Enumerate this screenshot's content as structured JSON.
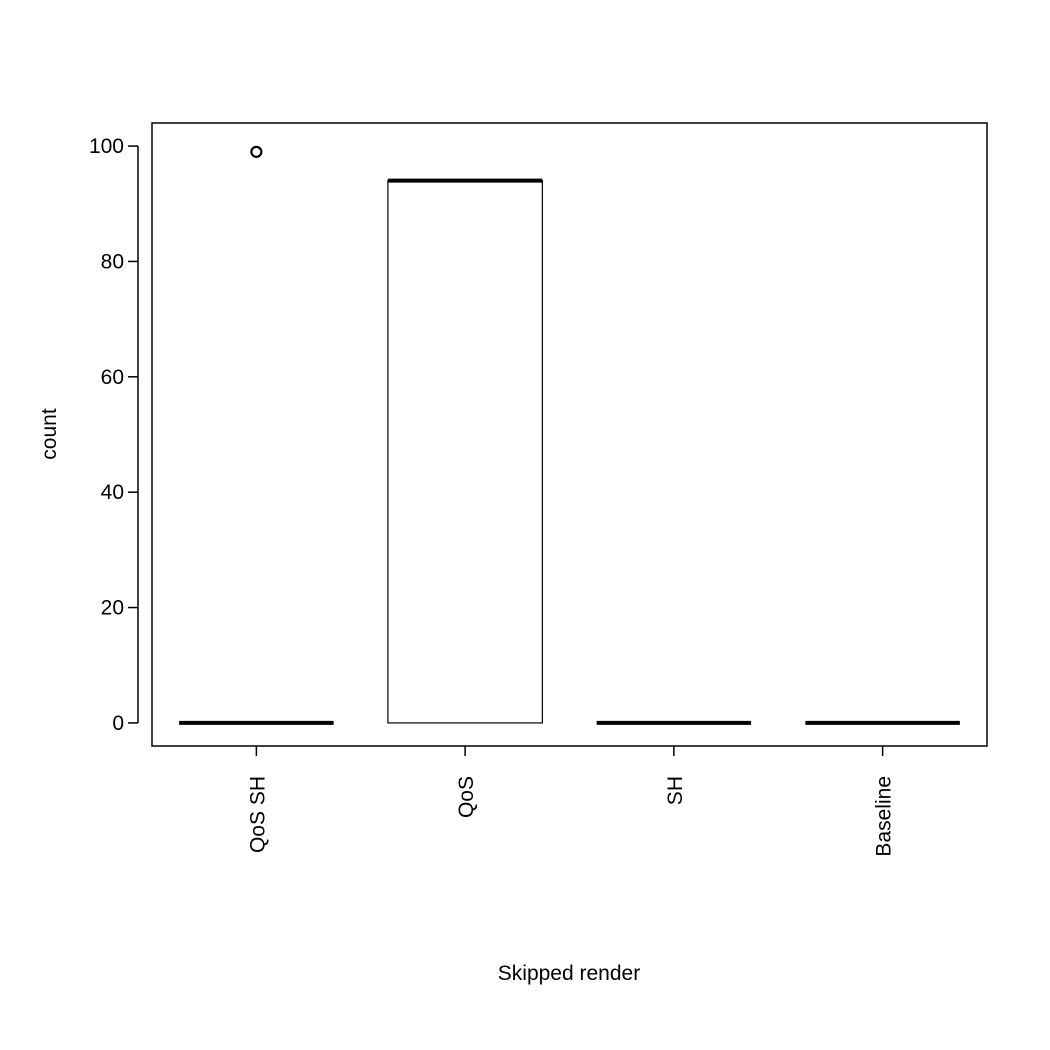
{
  "chart_data": {
    "type": "boxplot",
    "title": "",
    "xlabel": "Skipped render",
    "ylabel": "count",
    "ylim": [
      -4,
      104
    ],
    "y_ticks": [
      0,
      20,
      40,
      60,
      80,
      100
    ],
    "y_tick_labels": [
      "0",
      "20",
      "40",
      "60",
      "80",
      "100"
    ],
    "grid": false,
    "legend": "none",
    "x_tick_orientation": "vertical",
    "categories": [
      "QoS SH",
      "QoS",
      "SH",
      "Baseline"
    ],
    "boxes": [
      {
        "category": "QoS SH",
        "min": 0,
        "q1": 0,
        "median": 0,
        "q3": 0,
        "max": 0,
        "outliers": [
          99
        ]
      },
      {
        "category": "QoS",
        "min": 0,
        "q1": 0,
        "median": 94,
        "q3": 94,
        "max": 94,
        "outliers": []
      },
      {
        "category": "SH",
        "min": 0,
        "q1": 0,
        "median": 0,
        "q3": 0,
        "max": 0,
        "outliers": []
      },
      {
        "category": "Baseline",
        "min": 0,
        "q1": 0,
        "median": 0,
        "q3": 0,
        "max": 0,
        "outliers": []
      }
    ],
    "colors": {
      "stroke": "#000000",
      "box_fill": "#ffffff"
    }
  }
}
